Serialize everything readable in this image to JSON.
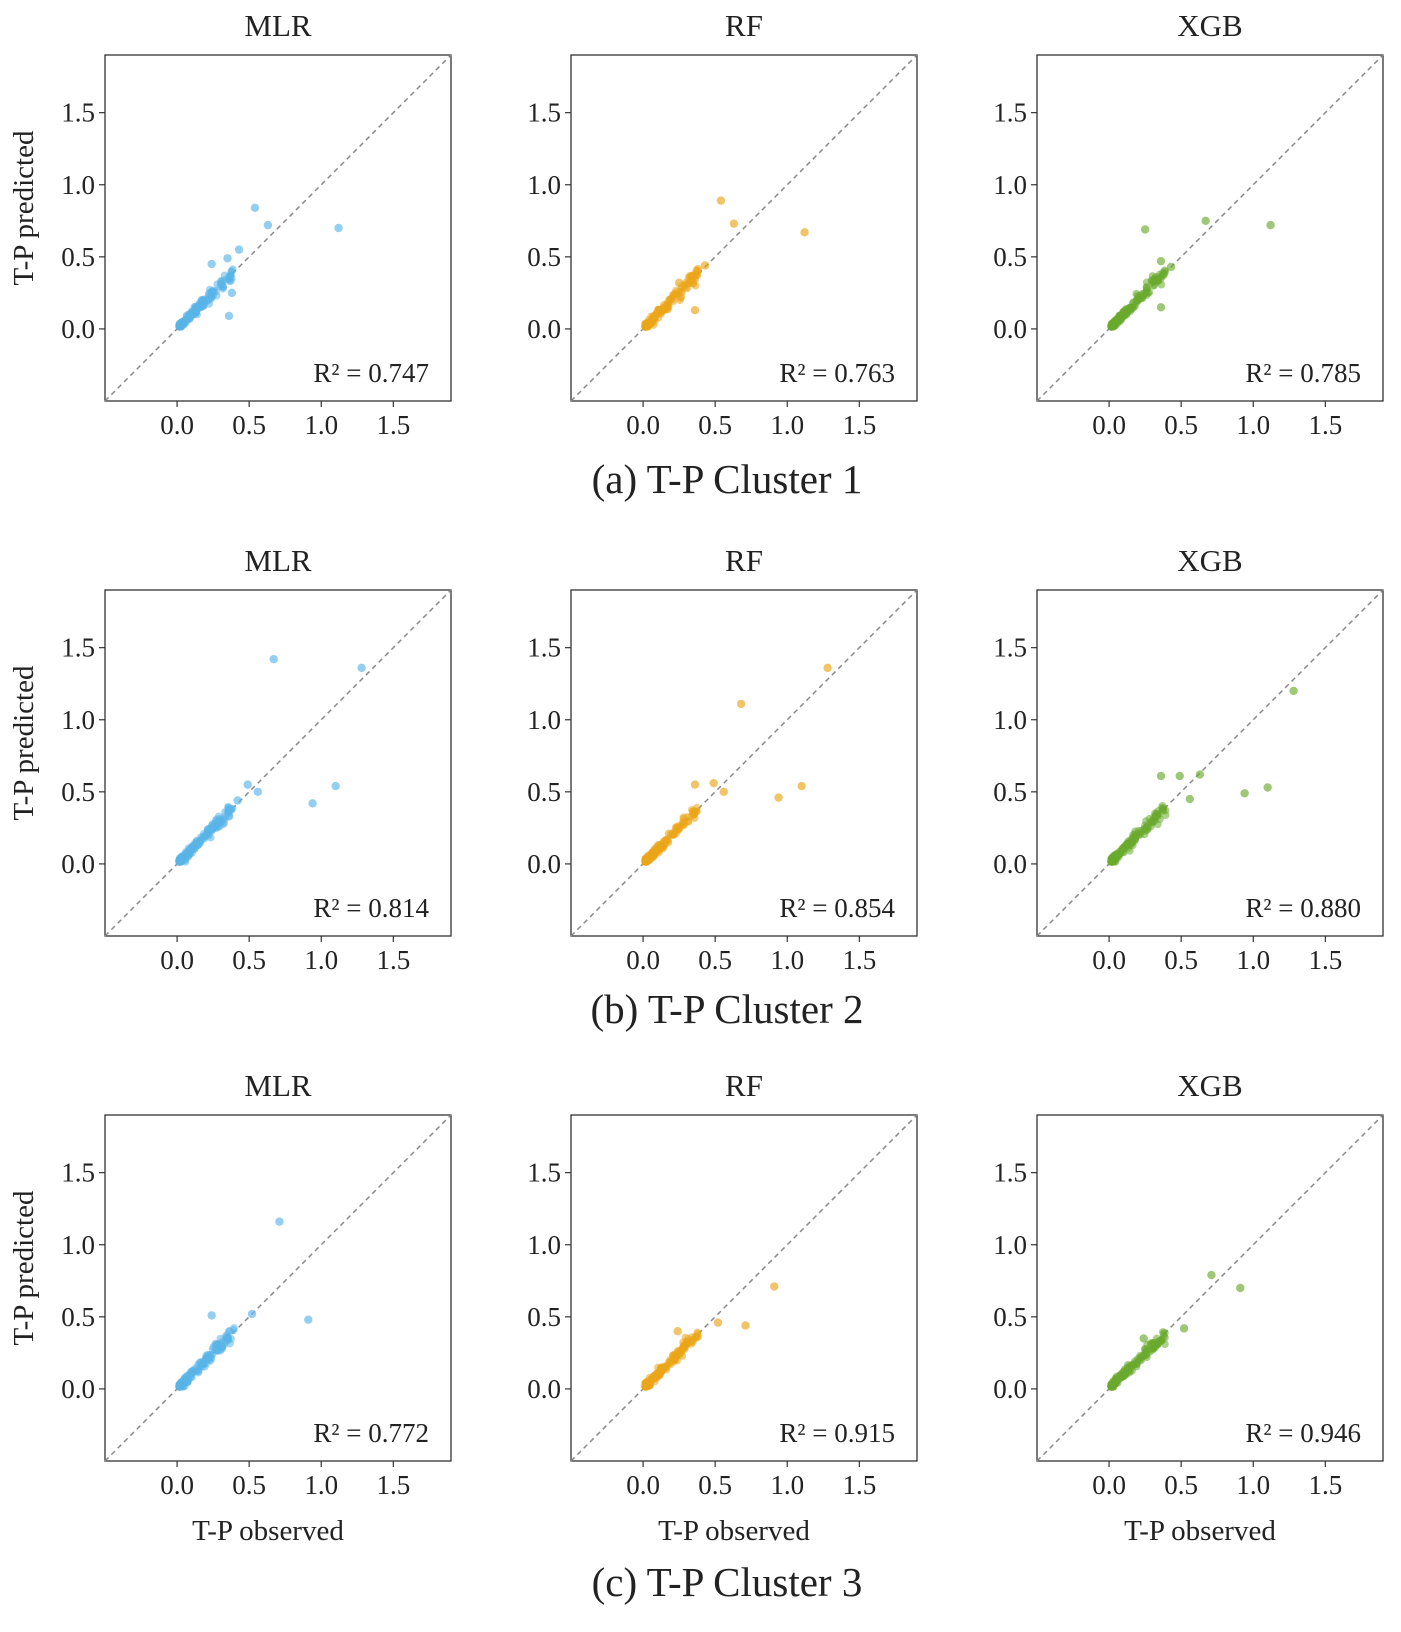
{
  "chart_data": {
    "type": "scatter",
    "xlabel": "T-P observed",
    "ylabel": "T-P predicted",
    "xlim": [
      -0.5,
      1.9
    ],
    "ylim": [
      -0.5,
      1.9
    ],
    "ticks": [
      0.0,
      0.5,
      1.0,
      1.5
    ],
    "tick_labels": [
      "0.0",
      "0.5",
      "1.0",
      "1.5"
    ],
    "reference_line": "y = x (dashed)",
    "grid": false,
    "model_colors": {
      "MLR": "#5ab4e8",
      "RF": "#eba519",
      "XGB": "#6aaa2e"
    },
    "rows": [
      {
        "caption": "(a) T-P Cluster 1",
        "panels": [
          {
            "title": "MLR",
            "r2_label": "R² = 0.747",
            "color": "#5ab4e8",
            "outliers": [
              [
                0.54,
                0.84
              ],
              [
                0.63,
                0.72
              ],
              [
                1.12,
                0.7
              ],
              [
                0.43,
                0.55
              ],
              [
                0.35,
                0.49
              ],
              [
                0.38,
                0.25
              ],
              [
                0.36,
                0.09
              ],
              [
                0.24,
                0.45
              ]
            ]
          },
          {
            "title": "RF",
            "r2_label": "R² = 0.763",
            "color": "#eba519",
            "outliers": [
              [
                0.54,
                0.89
              ],
              [
                0.63,
                0.73
              ],
              [
                1.12,
                0.67
              ],
              [
                0.43,
                0.44
              ],
              [
                0.38,
                0.4
              ],
              [
                0.36,
                0.13
              ],
              [
                0.25,
                0.32
              ]
            ]
          },
          {
            "title": "XGB",
            "r2_label": "R² = 0.785",
            "color": "#6aaa2e",
            "outliers": [
              [
                0.67,
                0.75
              ],
              [
                0.25,
                0.69
              ],
              [
                1.12,
                0.72
              ],
              [
                0.43,
                0.43
              ],
              [
                0.36,
                0.47
              ],
              [
                0.38,
                0.38
              ],
              [
                0.36,
                0.15
              ]
            ]
          }
        ]
      },
      {
        "caption": "(b) T-P Cluster 2",
        "panels": [
          {
            "title": "MLR",
            "r2_label": "R² = 0.814",
            "color": "#5ab4e8",
            "outliers": [
              [
                0.67,
                1.42
              ],
              [
                1.28,
                1.36
              ],
              [
                1.1,
                0.54
              ],
              [
                0.94,
                0.42
              ],
              [
                0.49,
                0.55
              ],
              [
                0.56,
                0.5
              ],
              [
                0.42,
                0.44
              ]
            ]
          },
          {
            "title": "RF",
            "r2_label": "R² = 0.854",
            "color": "#eba519",
            "outliers": [
              [
                0.68,
                1.11
              ],
              [
                1.28,
                1.36
              ],
              [
                1.1,
                0.54
              ],
              [
                0.94,
                0.46
              ],
              [
                0.49,
                0.56
              ],
              [
                0.56,
                0.5
              ],
              [
                0.36,
                0.55
              ]
            ]
          },
          {
            "title": "XGB",
            "r2_label": "R² = 0.880",
            "color": "#6aaa2e",
            "outliers": [
              [
                1.28,
                1.2
              ],
              [
                1.1,
                0.53
              ],
              [
                0.94,
                0.49
              ],
              [
                0.63,
                0.62
              ],
              [
                0.49,
                0.61
              ],
              [
                0.36,
                0.61
              ],
              [
                0.56,
                0.45
              ]
            ]
          }
        ]
      },
      {
        "caption": "(c) T-P Cluster 3",
        "panels": [
          {
            "title": "MLR",
            "r2_label": "R² = 0.772",
            "color": "#5ab4e8",
            "outliers": [
              [
                0.71,
                1.16
              ],
              [
                0.24,
                0.51
              ],
              [
                0.52,
                0.52
              ],
              [
                0.91,
                0.48
              ],
              [
                0.31,
                0.28
              ],
              [
                0.28,
                0.27
              ],
              [
                0.22,
                0.2
              ]
            ]
          },
          {
            "title": "RF",
            "r2_label": "R² = 0.915",
            "color": "#eba519",
            "outliers": [
              [
                0.91,
                0.71
              ],
              [
                0.52,
                0.46
              ],
              [
                0.71,
                0.44
              ],
              [
                0.24,
                0.4
              ],
              [
                0.31,
                0.32
              ],
              [
                0.28,
                0.29
              ],
              [
                0.22,
                0.2
              ]
            ]
          },
          {
            "title": "XGB",
            "r2_label": "R² = 0.946",
            "color": "#6aaa2e",
            "outliers": [
              [
                0.71,
                0.79
              ],
              [
                0.91,
                0.7
              ],
              [
                0.52,
                0.42
              ],
              [
                0.24,
                0.35
              ],
              [
                0.31,
                0.3
              ],
              [
                0.28,
                0.26
              ],
              [
                0.22,
                0.2
              ]
            ]
          }
        ]
      }
    ]
  }
}
